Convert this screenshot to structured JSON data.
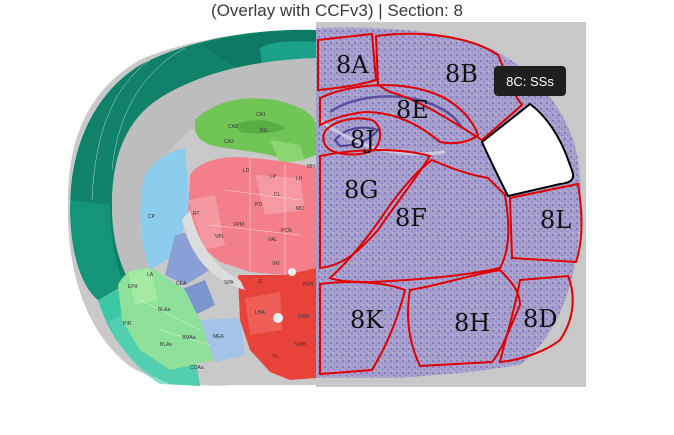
{
  "header": {
    "title": "(Overlay with CCFv3) | Section: 8"
  },
  "tooltip": {
    "text": "8C: SSs"
  },
  "regions": {
    "r8A": "8A",
    "r8B": "8B",
    "r8E": "8E",
    "r8J": "8J",
    "r8G": "8G",
    "r8F": "8F",
    "r8L": "8L",
    "r8K": "8K",
    "r8H": "8H",
    "r8D": "8D"
  },
  "atlas_labels": {
    "ca1": "CA1",
    "ca2": "CA2",
    "ca3": "CA3",
    "dg": "DG",
    "lp": "LP",
    "ld": "LD",
    "po": "PO",
    "cl": "CL",
    "mo": "MO",
    "vpm": "VPM",
    "vpl": "VPL",
    "val": "VAL",
    "rt": "RT",
    "vm": "VM",
    "pcn": "PCN",
    "cp": "CP",
    "la": "LA",
    "bla": "BLAa",
    "blav": "BLAv",
    "bmaa": "BMAa",
    "mea": "MEA",
    "cea": "CEA",
    "coa": "COAa",
    "pir": "PIR",
    "epd": "EPd",
    "zi": "ZI",
    "lha": "LHA",
    "dmh": "DMH",
    "vmh": "VMH",
    "tu": "TU",
    "spa": "SPA",
    "pva": "PVH",
    "mh": "MH",
    "lh": "LH"
  },
  "colors": {
    "cortex_dark": "#12876a",
    "cortex_mid": "#1aa389",
    "cortex_light": "#35c49e",
    "hippocampus": "#72c857",
    "thalamus": "#f37f8a",
    "hypothalamus": "#e9453c",
    "striatum": "#8dcbee",
    "amygdala": "#8de09d",
    "pallidum": "#8d9fd6",
    "nissl": "#a8a0cf",
    "outline": "#e00000",
    "tooltip_bg": "#1f1f1f"
  }
}
